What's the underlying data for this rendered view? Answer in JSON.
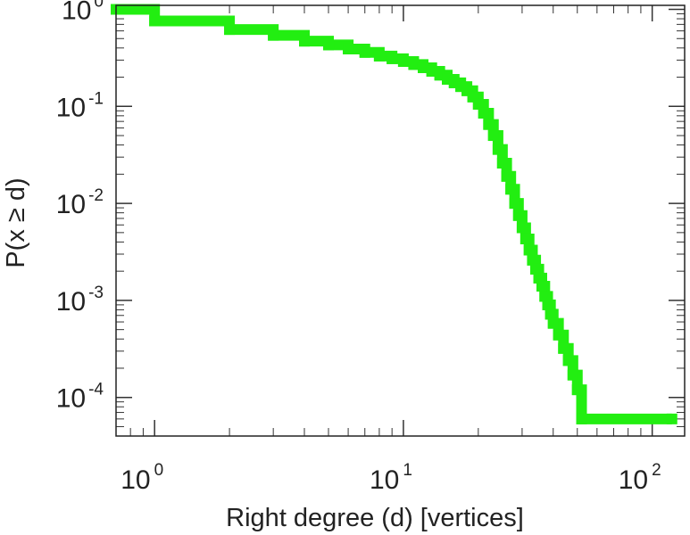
{
  "chart_data": {
    "type": "line",
    "xlabel": "Right degree (d) [vertices]",
    "ylabel": "P(x ≥ d)",
    "x_scale": "log",
    "y_scale": "log",
    "xlim": [
      0.7,
      135
    ],
    "ylim": [
      4e-05,
      1.1
    ],
    "grid": false,
    "x_ticks": [
      {
        "value": 1,
        "base": "10",
        "exp": "0"
      },
      {
        "value": 10,
        "base": "10",
        "exp": "1"
      },
      {
        "value": 100,
        "base": "10",
        "exp": "2"
      }
    ],
    "y_ticks": [
      {
        "value": 1,
        "base": "10",
        "exp": "0"
      },
      {
        "value": 0.1,
        "base": "10",
        "exp": "-1"
      },
      {
        "value": 0.01,
        "base": "10",
        "exp": "-2"
      },
      {
        "value": 0.001,
        "base": "10",
        "exp": "-3"
      },
      {
        "value": 0.0001,
        "base": "10",
        "exp": "-4"
      }
    ],
    "series": [
      {
        "color": "#22ee11",
        "x": [
          0.7,
          1,
          2,
          3,
          4,
          5,
          6,
          7,
          8,
          9,
          10,
          11,
          12,
          13,
          14,
          15,
          16,
          17,
          18,
          19,
          20,
          21,
          22,
          23,
          24,
          25,
          26,
          27,
          28,
          29,
          30,
          31,
          32,
          33,
          34,
          35,
          36,
          37,
          38,
          39,
          40,
          42,
          44,
          46,
          48,
          50,
          52,
          120
        ],
        "y": [
          1.0,
          0.76,
          0.62,
          0.54,
          0.47,
          0.43,
          0.39,
          0.36,
          0.33,
          0.31,
          0.29,
          0.27,
          0.25,
          0.23,
          0.21,
          0.19,
          0.175,
          0.16,
          0.145,
          0.125,
          0.105,
          0.085,
          0.065,
          0.05,
          0.036,
          0.026,
          0.019,
          0.014,
          0.01,
          0.0075,
          0.0056,
          0.0043,
          0.0033,
          0.0026,
          0.0021,
          0.0017,
          0.0014,
          0.0011,
          0.0009,
          0.00072,
          0.00058,
          0.00044,
          0.00032,
          0.00024,
          0.00017,
          0.00012,
          6e-05,
          6e-05
        ]
      }
    ]
  }
}
